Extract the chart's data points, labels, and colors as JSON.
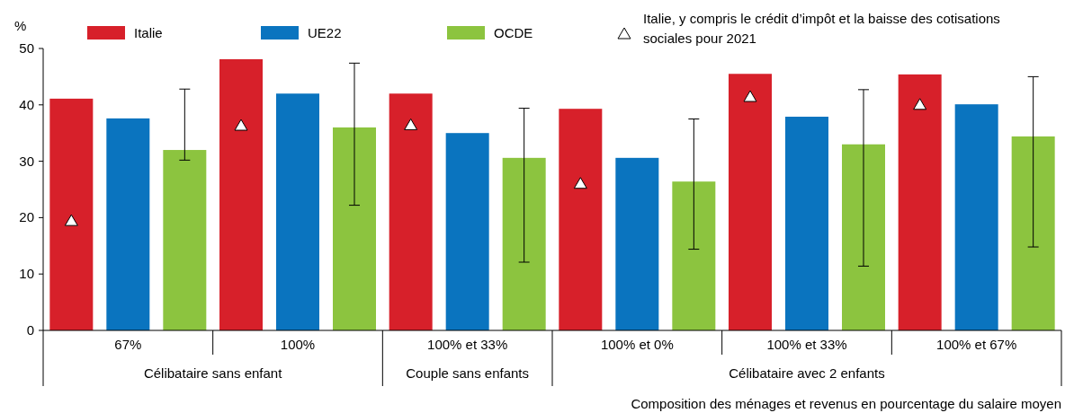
{
  "chart_data": {
    "type": "bar",
    "ylabel": "%",
    "xlabel": "Composition des ménages et revenus en pourcentage du salaire moyen",
    "categories": [
      "67%",
      "100%",
      "100% et 33%",
      "100% et 0%",
      "100% et 33%",
      "100% et 67%"
    ],
    "series": [
      {
        "name": "Italie",
        "color": "#d7202a",
        "values": [
          41.1,
          48.1,
          42.0,
          39.3,
          45.5,
          45.4
        ]
      },
      {
        "name": "UE22",
        "color": "#0a74bf",
        "values": [
          37.6,
          42.0,
          35.0,
          30.6,
          37.9,
          40.1
        ]
      },
      {
        "name": "OCDE",
        "color": "#8cc43f",
        "values": [
          32.0,
          36.0,
          30.6,
          26.4,
          33.0,
          34.4
        ],
        "errors": [
          [
            30.2,
            42.8
          ],
          [
            22.2,
            47.4
          ],
          [
            12.1,
            39.4
          ],
          [
            14.4,
            37.5
          ],
          [
            11.4,
            42.7
          ],
          [
            14.8,
            45.0
          ]
        ]
      },
      {
        "name": "Italie, y compris le crédit d’impôt et la baisse des cotisations sociales pour 2021",
        "type": "scatter",
        "marker": "triangle",
        "color": "#ffffff",
        "values": [
          19.4,
          36.3,
          36.4,
          26.0,
          41.4,
          40.0
        ]
      }
    ],
    "annotations": [
      "Célibataire sans enfant",
      "Couple sans enfants",
      "Célibataire avec 2 enfants"
    ],
    "ylim": [
      0,
      50
    ],
    "yticks": [
      0,
      10,
      20,
      30,
      40,
      50
    ],
    "grid": false,
    "legend": "top"
  }
}
